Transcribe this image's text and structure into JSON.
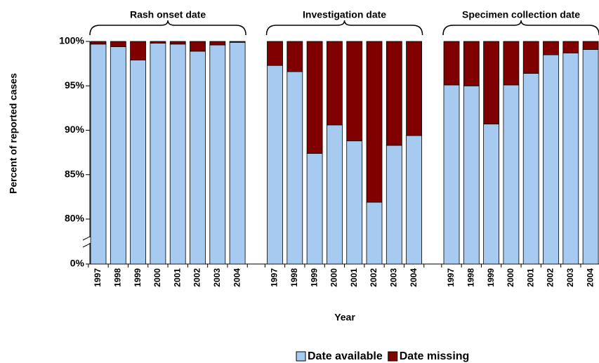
{
  "chart_data": {
    "type": "bar",
    "stacked": true,
    "ylabel": "Percent of reported cases",
    "xlabel": "Year",
    "axis_break": true,
    "ylim": [
      80,
      100
    ],
    "yticks": [
      {
        "value": 0,
        "label": "0%"
      },
      {
        "value": 80,
        "label": "80%"
      },
      {
        "value": 85,
        "label": "85%"
      },
      {
        "value": 90,
        "label": "90%"
      },
      {
        "value": 95,
        "label": "95%"
      },
      {
        "value": 100,
        "label": "100%"
      }
    ],
    "groups": [
      {
        "title": "Rash onset date",
        "categories": [
          "1997",
          "1998",
          "1999",
          "2000",
          "2001",
          "2002",
          "2003",
          "2004"
        ]
      },
      {
        "title": "Investigation date",
        "categories": [
          "1997",
          "1998",
          "1999",
          "2000",
          "2001",
          "2002",
          "2003",
          "2004"
        ]
      },
      {
        "title": "Specimen collection date",
        "categories": [
          "1997",
          "1998",
          "1999",
          "2000",
          "2001",
          "2002",
          "2003",
          "2004"
        ]
      }
    ],
    "series": [
      {
        "name": "Date available",
        "color": "#a6caf0",
        "values": [
          [
            99.7,
            99.4,
            97.9,
            99.8,
            99.7,
            98.9,
            99.6,
            99.9
          ],
          [
            97.3,
            96.6,
            87.4,
            90.6,
            88.8,
            81.9,
            88.3,
            89.4
          ],
          [
            95.1,
            95.0,
            90.7,
            95.1,
            96.4,
            98.5,
            98.7,
            99.1
          ]
        ]
      },
      {
        "name": "Date missing",
        "color": "#800000",
        "values": [
          [
            0.3,
            0.6,
            2.1,
            0.2,
            0.3,
            1.1,
            0.4,
            0.1
          ],
          [
            2.7,
            3.4,
            12.6,
            9.4,
            11.2,
            18.1,
            11.7,
            10.6
          ],
          [
            4.9,
            5.0,
            9.3,
            4.9,
            3.6,
            1.5,
            1.3,
            0.9
          ]
        ]
      }
    ]
  }
}
